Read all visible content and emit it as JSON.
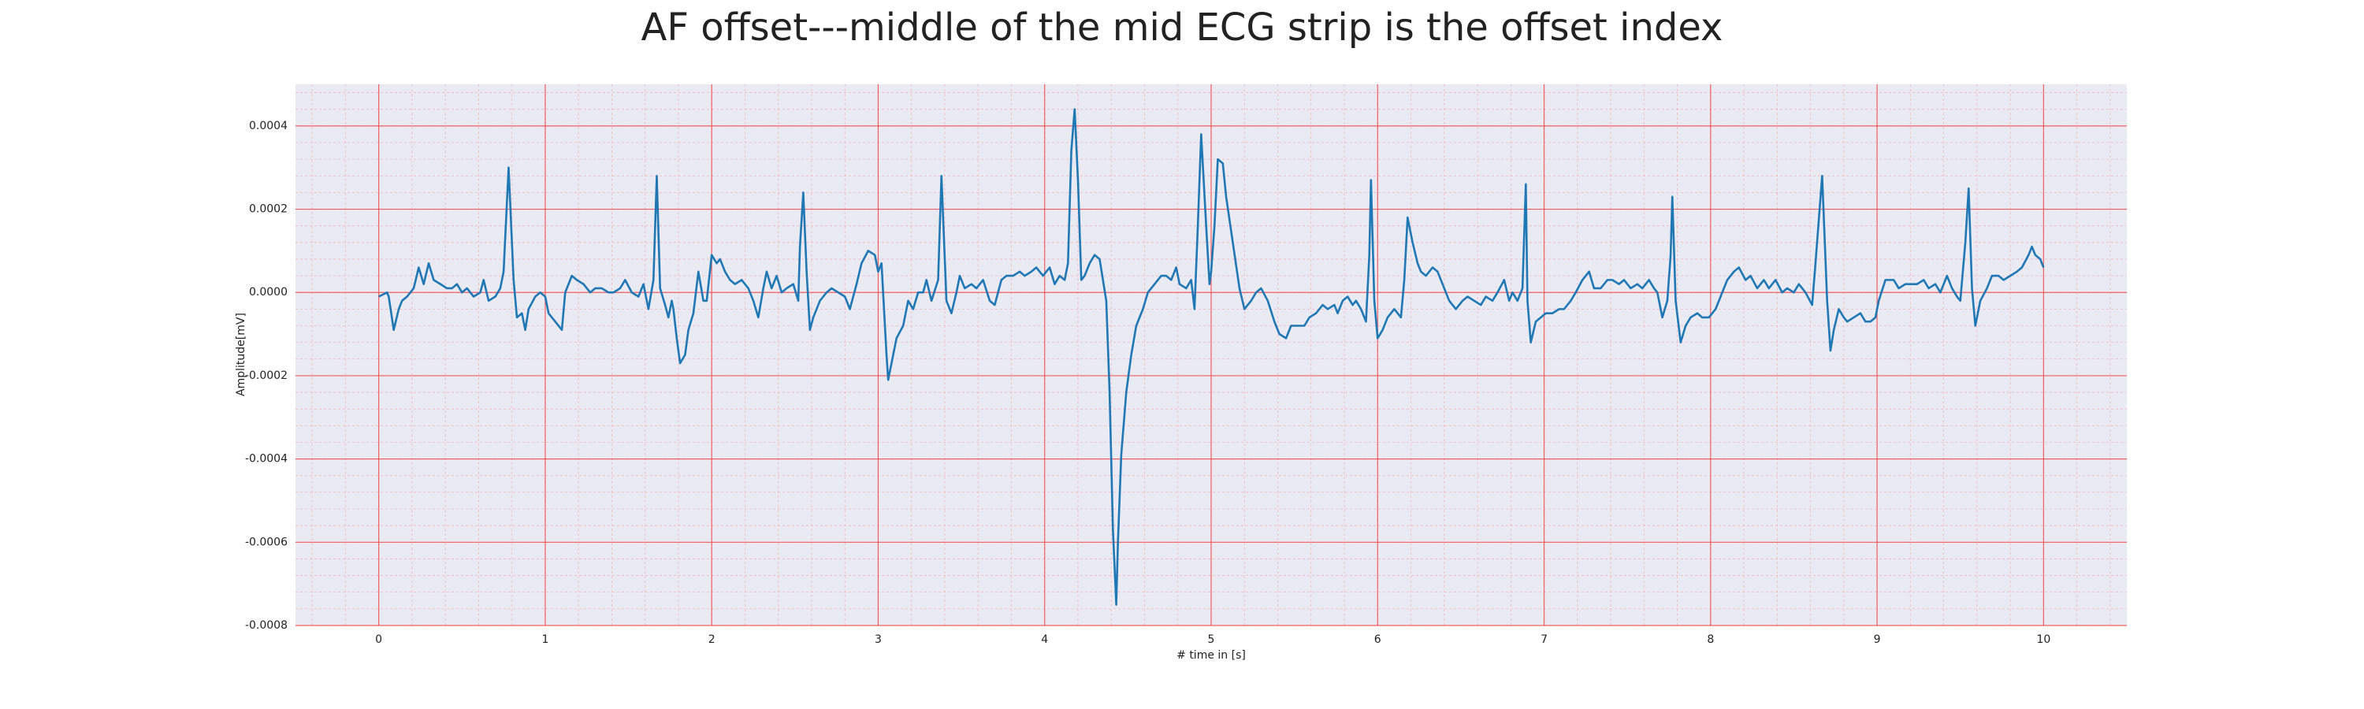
{
  "chart_data": {
    "type": "line",
    "title": "AF offset---middle of the mid ECG strip is the offset index",
    "xlabel": "# time in [s]",
    "ylabel": "Amplitude[mV]",
    "color": "#1f77b4",
    "grid": true,
    "minor_grid": 5,
    "xlim": [
      -0.5,
      10.5
    ],
    "xticks": [
      0,
      1,
      2,
      3,
      4,
      5,
      6,
      7,
      8,
      9,
      10
    ],
    "ylim": [
      -0.0008,
      0.0005
    ],
    "yticks": [
      -0.0008,
      -0.0006,
      -0.0004,
      -0.0002,
      {
        "value": 0,
        "label": "0.0000"
      },
      0.0002,
      0.0004
    ],
    "x": [
      0,
      0.05,
      0.06,
      0.09,
      0.12,
      0.14,
      0.17,
      0.21,
      0.24,
      0.27,
      0.3,
      0.33,
      0.37,
      0.41,
      0.44,
      0.47,
      0.5,
      0.53,
      0.57,
      0.61,
      0.63,
      0.66,
      0.7,
      0.73,
      0.75,
      0.78,
      0.81,
      0.83,
      0.86,
      0.88,
      0.9,
      0.94,
      0.97,
      1.0,
      1.02,
      1.06,
      1.1,
      1.12,
      1.16,
      1.19,
      1.23,
      1.27,
      1.3,
      1.34,
      1.38,
      1.41,
      1.45,
      1.48,
      1.52,
      1.56,
      1.59,
      1.62,
      1.65,
      1.67,
      1.69,
      1.72,
      1.74,
      1.76,
      1.77,
      1.79,
      1.81,
      1.84,
      1.86,
      1.89,
      1.92,
      1.95,
      1.97,
      2.0,
      2.03,
      2.05,
      2.08,
      2.11,
      2.14,
      2.18,
      2.22,
      2.25,
      2.28,
      2.31,
      2.33,
      2.36,
      2.39,
      2.42,
      2.45,
      2.49,
      2.52,
      2.53,
      2.55,
      2.57,
      2.59,
      2.61,
      2.65,
      2.69,
      2.72,
      2.76,
      2.8,
      2.83,
      2.87,
      2.9,
      2.94,
      2.98,
      3.0,
      3.02,
      3.05,
      3.06,
      3.09,
      3.11,
      3.15,
      3.18,
      3.21,
      3.24,
      3.27,
      3.29,
      3.32,
      3.36,
      3.38,
      3.41,
      3.44,
      3.47,
      3.49,
      3.52,
      3.56,
      3.59,
      3.63,
      3.67,
      3.7,
      3.74,
      3.77,
      3.81,
      3.85,
      3.88,
      3.92,
      3.95,
      3.99,
      4.03,
      4.06,
      4.09,
      4.12,
      4.14,
      4.16,
      4.18,
      4.2,
      4.22,
      4.24,
      4.27,
      4.3,
      4.33,
      4.35,
      4.37,
      4.39,
      4.41,
      4.43,
      4.44,
      4.46,
      4.49,
      4.52,
      4.55,
      4.59,
      4.62,
      4.66,
      4.7,
      4.73,
      4.76,
      4.79,
      4.81,
      4.85,
      4.88,
      4.9,
      4.92,
      4.94,
      4.97,
      4.99,
      5.0,
      5.02,
      5.04,
      5.07,
      5.09,
      5.13,
      5.17,
      5.2,
      5.24,
      5.27,
      5.3,
      5.34,
      5.38,
      5.41,
      5.45,
      5.48,
      5.52,
      5.56,
      5.59,
      5.63,
      5.67,
      5.7,
      5.74,
      5.76,
      5.79,
      5.82,
      5.85,
      5.87,
      5.9,
      5.93,
      5.95,
      5.96,
      5.98,
      6.0,
      6.03,
      6.06,
      6.1,
      6.14,
      6.16,
      6.18,
      6.21,
      6.24,
      6.26,
      6.29,
      6.33,
      6.36,
      6.4,
      6.43,
      6.47,
      6.51,
      6.54,
      6.58,
      6.62,
      6.65,
      6.69,
      6.72,
      6.76,
      6.79,
      6.81,
      6.84,
      6.87,
      6.89,
      6.9,
      6.92,
      6.95,
      6.98,
      7.01,
      7.05,
      7.09,
      7.12,
      7.16,
      7.19,
      7.23,
      7.27,
      7.3,
      7.34,
      7.38,
      7.41,
      7.45,
      7.48,
      7.52,
      7.56,
      7.59,
      7.63,
      7.66,
      7.68,
      7.71,
      7.74,
      7.76,
      7.77,
      7.79,
      7.82,
      7.85,
      7.88,
      7.92,
      7.95,
      7.99,
      8.03,
      8.06,
      8.1,
      8.14,
      8.17,
      8.21,
      8.24,
      8.28,
      8.32,
      8.35,
      8.39,
      8.43,
      8.46,
      8.5,
      8.53,
      8.57,
      8.61,
      8.63,
      8.67,
      8.7,
      8.72,
      8.74,
      8.77,
      8.8,
      8.82,
      8.86,
      8.9,
      8.93,
      8.96,
      8.99,
      9.01,
      9.05,
      9.1,
      9.13,
      9.17,
      9.2,
      9.24,
      9.28,
      9.31,
      9.35,
      9.38,
      9.42,
      9.45,
      9.48,
      9.5,
      9.53,
      9.55,
      9.57,
      9.59,
      9.62,
      9.66,
      9.69,
      9.73,
      9.76,
      9.8,
      9.84,
      9.87,
      9.91,
      9.93,
      9.95,
      9.98,
      10.0
    ],
    "values": [
      -1e-05,
      0,
      -1e-05,
      -9e-05,
      -4e-05,
      -2e-05,
      -1e-05,
      1e-05,
      6e-05,
      2e-05,
      7e-05,
      3e-05,
      2e-05,
      1e-05,
      1e-05,
      2e-05,
      0,
      1e-05,
      -1e-05,
      0,
      3e-05,
      -2e-05,
      -1e-05,
      1e-05,
      5e-05,
      0.0003,
      3e-05,
      -6e-05,
      -5e-05,
      -9e-05,
      -4e-05,
      -1e-05,
      0,
      -1e-05,
      -5e-05,
      -7e-05,
      -9e-05,
      0,
      4e-05,
      3e-05,
      2e-05,
      0,
      1e-05,
      1e-05,
      0,
      0,
      1e-05,
      3e-05,
      0,
      -1e-05,
      2e-05,
      -4e-05,
      3e-05,
      0.00028,
      1e-05,
      -3e-05,
      -6e-05,
      -2e-05,
      -4e-05,
      -0.00011,
      -0.00017,
      -0.00015,
      -9e-05,
      -5e-05,
      5e-05,
      -2e-05,
      -2e-05,
      9e-05,
      7e-05,
      8e-05,
      5e-05,
      3e-05,
      2e-05,
      3e-05,
      1e-05,
      -2e-05,
      -6e-05,
      1e-05,
      5e-05,
      1e-05,
      4e-05,
      0,
      1e-05,
      2e-05,
      -2e-05,
      0.00011,
      0.00024,
      5e-05,
      -9e-05,
      -6e-05,
      -2e-05,
      0,
      1e-05,
      0,
      -1e-05,
      -4e-05,
      2e-05,
      7e-05,
      0.0001,
      9e-05,
      5e-05,
      7e-05,
      -0.00015,
      -0.00021,
      -0.00015,
      -0.00011,
      -8e-05,
      -2e-05,
      -4e-05,
      0,
      0,
      3e-05,
      -2e-05,
      3e-05,
      0.00028,
      -2e-05,
      -5e-05,
      0,
      4e-05,
      1e-05,
      2e-05,
      1e-05,
      3e-05,
      -2e-05,
      -3e-05,
      3e-05,
      4e-05,
      4e-05,
      5e-05,
      4e-05,
      5e-05,
      6e-05,
      4e-05,
      6e-05,
      2e-05,
      4e-05,
      3e-05,
      7e-05,
      0.00034,
      0.00044,
      0.00027,
      3e-05,
      4e-05,
      7e-05,
      9e-05,
      8e-05,
      3e-05,
      -2e-05,
      -0.00024,
      -0.00057,
      -0.00075,
      -0.0006,
      -0.00039,
      -0.00024,
      -0.00015,
      -8e-05,
      -4e-05,
      0,
      2e-05,
      4e-05,
      4e-05,
      3e-05,
      6e-05,
      2e-05,
      1e-05,
      3e-05,
      -4e-05,
      0.00016,
      0.00038,
      0.00016,
      2e-05,
      5e-05,
      0.00016,
      0.00032,
      0.00031,
      0.00023,
      0.00012,
      1e-05,
      -4e-05,
      -2e-05,
      0,
      1e-05,
      -2e-05,
      -7e-05,
      -0.0001,
      -0.00011,
      -8e-05,
      -8e-05,
      -8e-05,
      -6e-05,
      -5e-05,
      -3e-05,
      -4e-05,
      -3e-05,
      -5e-05,
      -2e-05,
      -1e-05,
      -3e-05,
      -2e-05,
      -4e-05,
      -7e-05,
      9e-05,
      0.00027,
      -2e-05,
      -0.00011,
      -9e-05,
      -6e-05,
      -4e-05,
      -6e-05,
      3e-05,
      0.00018,
      0.00012,
      7e-05,
      5e-05,
      4e-05,
      6e-05,
      5e-05,
      1e-05,
      -2e-05,
      -4e-05,
      -2e-05,
      -1e-05,
      -2e-05,
      -3e-05,
      -1e-05,
      -2e-05,
      0,
      3e-05,
      -2e-05,
      0,
      -2e-05,
      1e-05,
      0.00026,
      -2e-05,
      -0.00012,
      -7e-05,
      -6e-05,
      -5e-05,
      -5e-05,
      -4e-05,
      -4e-05,
      -2e-05,
      0,
      3e-05,
      5e-05,
      1e-05,
      1e-05,
      3e-05,
      3e-05,
      2e-05,
      3e-05,
      1e-05,
      2e-05,
      1e-05,
      3e-05,
      1e-05,
      0,
      -6e-05,
      -2e-05,
      9e-05,
      0.00023,
      -2e-05,
      -0.00012,
      -8e-05,
      -6e-05,
      -5e-05,
      -6e-05,
      -6e-05,
      -4e-05,
      -1e-05,
      3e-05,
      5e-05,
      6e-05,
      3e-05,
      4e-05,
      1e-05,
      3e-05,
      1e-05,
      3e-05,
      0,
      1e-05,
      0,
      2e-05,
      0,
      -3e-05,
      7e-05,
      0.00028,
      -2e-05,
      -0.00014,
      -9e-05,
      -4e-05,
      -6e-05,
      -7e-05,
      -6e-05,
      -5e-05,
      -7e-05,
      -7e-05,
      -6e-05,
      -2e-05,
      3e-05,
      3e-05,
      1e-05,
      2e-05,
      2e-05,
      2e-05,
      3e-05,
      1e-05,
      2e-05,
      0,
      4e-05,
      1e-05,
      -1e-05,
      -2e-05,
      0.00012,
      0.00025,
      1e-05,
      -8e-05,
      -2e-05,
      1e-05,
      4e-05,
      4e-05,
      3e-05,
      4e-05,
      5e-05,
      6e-05,
      9e-05,
      0.00011,
      9e-05,
      8e-05,
      6e-05
    ]
  }
}
